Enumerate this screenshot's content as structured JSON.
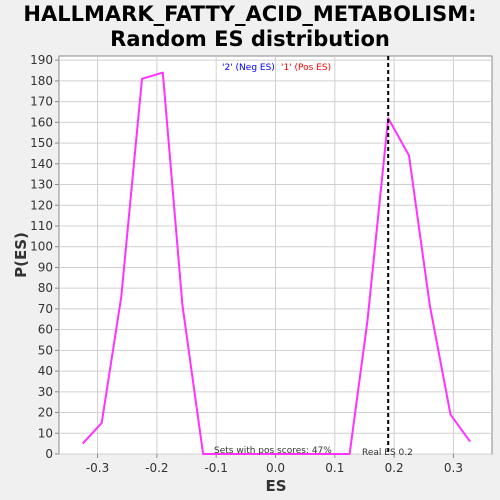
{
  "chart_data": {
    "type": "line",
    "title_line1": "HALLMARK_FATTY_ACID_METABOLISM:",
    "title_line2": "Random ES distribution",
    "xlabel": "ES",
    "ylabel": "P(ES)",
    "xlim": [
      -0.365,
      0.365
    ],
    "ylim": [
      0,
      192
    ],
    "xticks": [
      -0.3,
      -0.2,
      -0.1,
      0.0,
      0.1,
      0.2,
      0.3
    ],
    "xtick_labels": [
      "-0.3",
      "-0.2",
      "-0.1",
      "0.0",
      "0.1",
      "0.2",
      "0.3"
    ],
    "yticks": [
      0,
      10,
      20,
      30,
      40,
      50,
      60,
      70,
      80,
      90,
      100,
      110,
      120,
      130,
      140,
      150,
      160,
      170,
      180,
      190
    ],
    "legend": [
      {
        "label": "'2' (Neg ES)",
        "color": "#0000ff"
      },
      {
        "label": "'1' (Pos ES)",
        "color": "#ff0000"
      }
    ],
    "series": [
      {
        "color": "#ff33ff",
        "x": [
          -0.325,
          -0.293,
          -0.26,
          -0.225,
          -0.19,
          -0.157,
          -0.122,
          -0.09,
          0.125,
          0.155,
          0.19,
          0.225,
          0.26,
          0.295,
          0.328
        ],
        "y": [
          5,
          15,
          76,
          181,
          184,
          72,
          0,
          0,
          0,
          64,
          162,
          144,
          72,
          19,
          6
        ]
      }
    ],
    "real_es": 0.19,
    "real_es_label": "Real ES 0.2",
    "pos_scores_label": "Sets with pos scores: 47%",
    "grid": true
  }
}
